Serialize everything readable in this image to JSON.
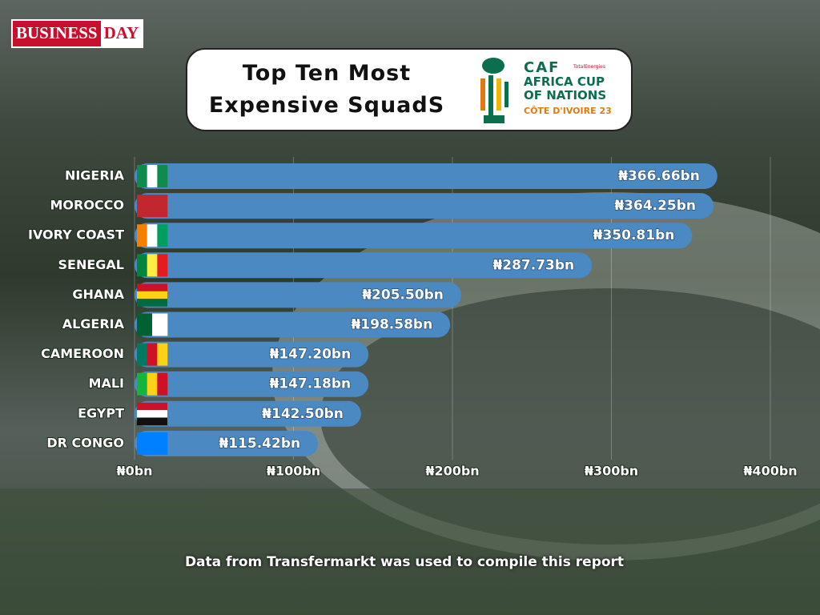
{
  "brand": {
    "part1": "BUSINESS",
    "part2": "DAY"
  },
  "logo": {
    "caf": "CAF",
    "sponsor": "TotalEnergies",
    "name": "AFRICA CUP OF NATIONS",
    "host": "CÔTE D'IVOIRE 23"
  },
  "chart_data": {
    "type": "bar",
    "orientation": "horizontal",
    "title": "Top Ten Most Expensive SquadS",
    "note": "Data from Transfermarkt was used to compile this report",
    "categories": [
      "NIGERIA",
      "MOROCCO",
      "IVORY COAST",
      "SENEGAL",
      "GHANA",
      "ALGERIA",
      "CAMEROON",
      "MALI",
      "EGYPT",
      "DR CONGO"
    ],
    "values": [
      366.66,
      364.25,
      350.81,
      287.73,
      205.5,
      198.58,
      147.2,
      147.18,
      142.5,
      115.42
    ],
    "value_labels": [
      "₦366.66bn",
      "₦364.25bn",
      "₦350.81bn",
      "₦287.73bn",
      "₦205.50bn",
      "₦198.58bn",
      "₦147.20bn",
      "₦147.18bn",
      "₦142.50bn",
      "₦115.42bn"
    ],
    "color": "#4b89c3",
    "xlim": [
      0,
      400
    ],
    "xticks": [
      {
        "value": 0,
        "label": "₦0bn"
      },
      {
        "value": 100,
        "label": "₦100bn"
      },
      {
        "value": 200,
        "label": "₦200bn"
      },
      {
        "value": 300,
        "label": "₦300bn"
      },
      {
        "value": 400,
        "label": "₦400bn"
      }
    ],
    "grid": true
  }
}
